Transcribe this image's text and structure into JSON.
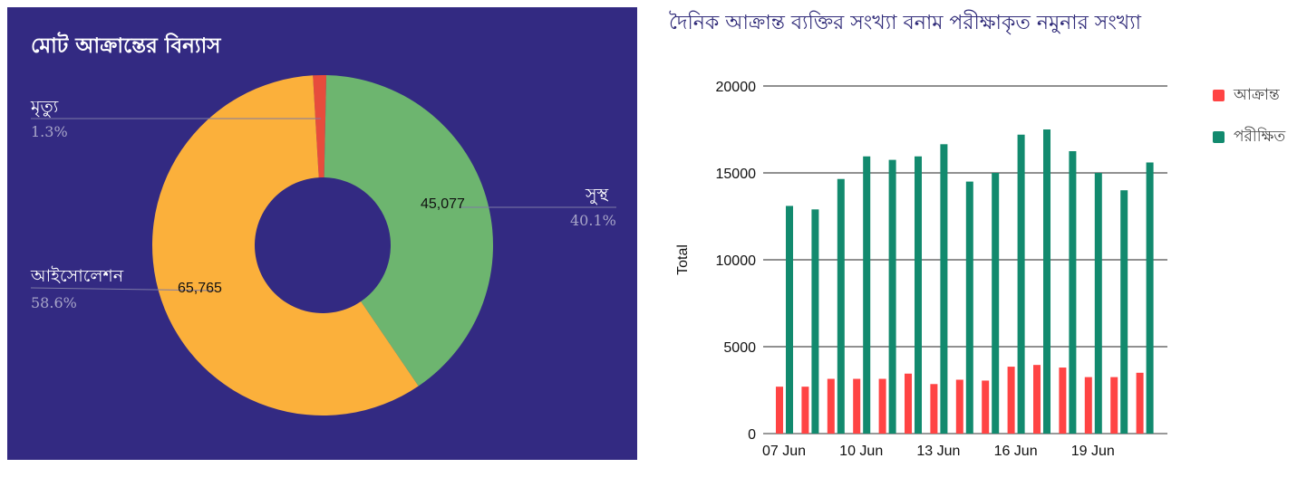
{
  "chart_data": [
    {
      "type": "pie",
      "title": "মোট আক্রান্তের বিন্যাস",
      "donut": true,
      "slices": [
        {
          "label": "মৃত্যু",
          "percent_label": "1.3%",
          "value": 1410,
          "value_label": "",
          "color": "#e74c3c"
        },
        {
          "label": "সুস্থ",
          "percent_label": "40.1%",
          "value": 45077,
          "value_label": "45,077",
          "color": "#6db56f"
        },
        {
          "label": "আইসোলেশন",
          "percent_label": "58.6%",
          "value": 65765,
          "value_label": "65,765",
          "color": "#fbb03b"
        }
      ]
    },
    {
      "type": "bar",
      "title": "দৈনিক আক্রান্ত ব্যক্তির সংখ্যা বনাম পরীক্ষাকৃত নমুনার সংখ্যা",
      "ylabel": "Total",
      "ylim": [
        0,
        20000
      ],
      "yticks": [
        "0",
        "5000",
        "10000",
        "15000",
        "20000"
      ],
      "xtick_labels": [
        "07 Jun",
        "10 Jun",
        "13 Jun",
        "16 Jun",
        "19 Jun"
      ],
      "xtick_index": [
        0,
        3,
        6,
        9,
        12
      ],
      "legend": "right",
      "categories": [
        "07 Jun",
        "08 Jun",
        "09 Jun",
        "10 Jun",
        "11 Jun",
        "12 Jun",
        "13 Jun",
        "14 Jun",
        "15 Jun",
        "16 Jun",
        "17 Jun",
        "18 Jun",
        "19 Jun",
        "20 Jun",
        "21 Jun"
      ],
      "series": [
        {
          "name": "আক্রান্ত",
          "color": "#ff4444",
          "values": [
            2700,
            2700,
            3150,
            3150,
            3150,
            3450,
            2850,
            3100,
            3050,
            3850,
            3950,
            3800,
            3250,
            3250,
            3500
          ]
        },
        {
          "name": "পরীক্ষিত",
          "color": "#128a6e",
          "values": [
            13100,
            12900,
            14650,
            15950,
            15750,
            15950,
            16650,
            14500,
            15000,
            17200,
            17500,
            16250,
            15000,
            14000,
            15600
          ]
        }
      ]
    }
  ]
}
